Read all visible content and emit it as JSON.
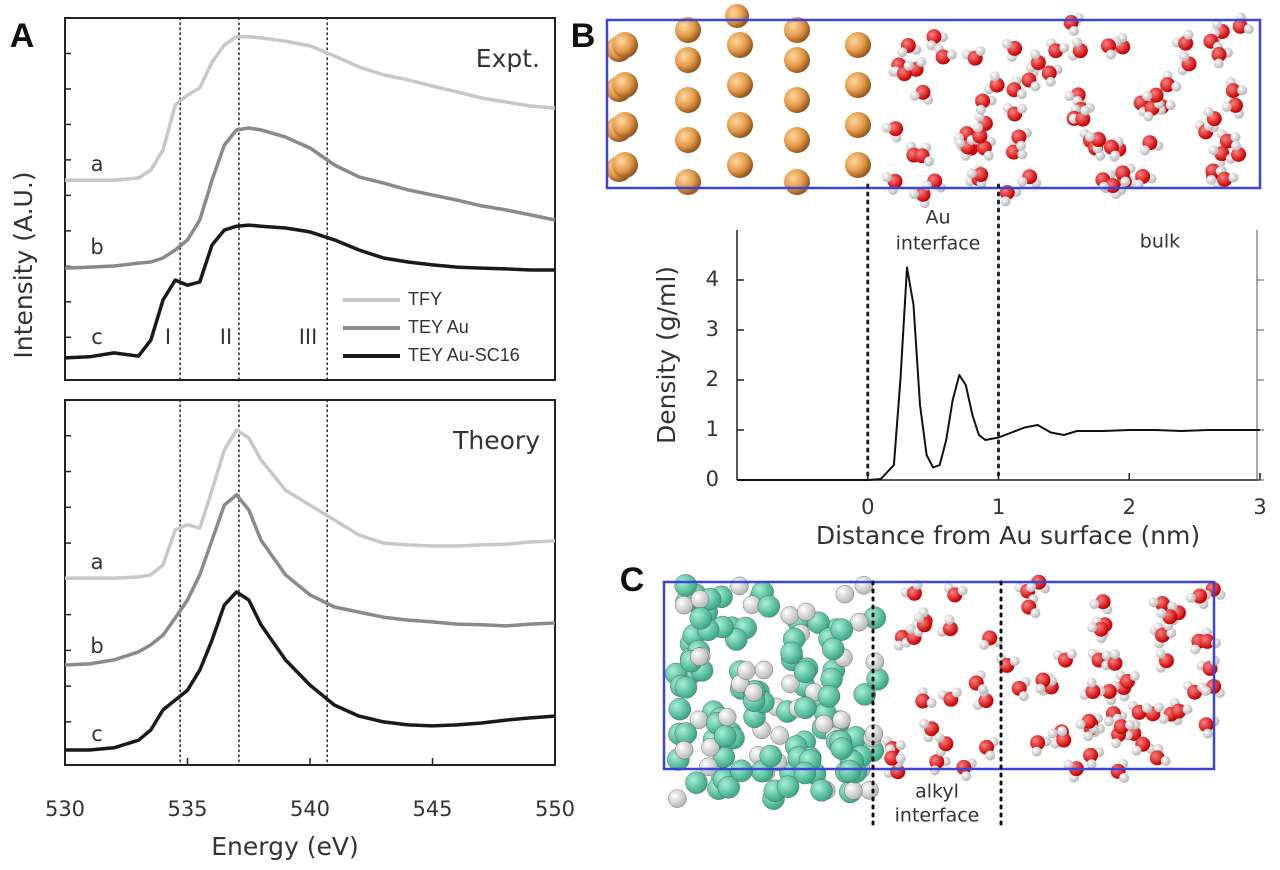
{
  "chart_data": [
    {
      "type": "line",
      "panel": "A",
      "title": "Expt.",
      "ylabel": "Intensity (A.U.)",
      "x": [
        530,
        531,
        532,
        533,
        533.5,
        534,
        534.5,
        535,
        535.5,
        536,
        536.5,
        537,
        537.5,
        538,
        539,
        540,
        541,
        542,
        543,
        544,
        545,
        546,
        547,
        548,
        549,
        550
      ],
      "series": [
        {
          "name": "TFY",
          "color": "#c8c8c8",
          "values": [
            5.52,
            5.52,
            5.52,
            5.58,
            5.8,
            6.35,
            7.6,
            7.87,
            8.07,
            8.78,
            9.25,
            9.48,
            9.48,
            9.45,
            9.36,
            9.23,
            8.95,
            8.65,
            8.43,
            8.29,
            8.12,
            7.96,
            7.79,
            7.68,
            7.57,
            7.51
          ]
        },
        {
          "name": "TEY Au",
          "color": "#8a8a8a",
          "values": [
            3.09,
            3.12,
            3.15,
            3.23,
            3.26,
            3.37,
            3.59,
            3.87,
            4.42,
            5.52,
            6.49,
            6.91,
            6.96,
            6.91,
            6.71,
            6.41,
            5.94,
            5.61,
            5.44,
            5.25,
            5.11,
            4.97,
            4.81,
            4.7,
            4.56,
            4.42
          ]
        },
        {
          "name": "TEY Au-SC16",
          "color": "#1a1a1a",
          "values": [
            0.61,
            0.64,
            0.75,
            0.66,
            1.1,
            2.21,
            2.76,
            2.62,
            2.71,
            3.73,
            4.14,
            4.25,
            4.28,
            4.25,
            4.2,
            4.09,
            3.87,
            3.59,
            3.37,
            3.26,
            3.18,
            3.12,
            3.09,
            3.07,
            3.04,
            3.04
          ]
        }
      ],
      "curve_labels": [
        "a",
        "b",
        "c"
      ],
      "peak_labels": [
        "I",
        "II",
        "III"
      ],
      "reference_lines": [
        534.7,
        537.1,
        540.7
      ],
      "xlim": [
        530,
        550
      ],
      "ylim": [
        0,
        10
      ],
      "legend": "lower right"
    },
    {
      "type": "line",
      "title": "Theory",
      "xlabel": "Energy (eV)",
      "x": [
        530,
        531,
        532,
        533,
        533.5,
        534,
        534.5,
        535,
        535.5,
        536,
        536.5,
        537,
        537.5,
        538,
        539,
        540,
        541,
        542,
        543,
        544,
        545,
        546,
        547,
        548,
        549,
        550
      ],
      "series": [
        {
          "name": "TFY",
          "color": "#c8c8c8",
          "values": [
            5.12,
            5.12,
            5.12,
            5.15,
            5.21,
            5.48,
            6.44,
            6.58,
            6.49,
            7.53,
            8.63,
            9.18,
            8.96,
            8.36,
            7.53,
            7.12,
            6.71,
            6.3,
            6.08,
            6.03,
            6.0,
            6.0,
            6.03,
            6.05,
            6.11,
            6.14
          ]
        },
        {
          "name": "TEY Au",
          "color": "#8a8a8a",
          "values": [
            2.74,
            2.77,
            2.88,
            3.1,
            3.29,
            3.56,
            4.03,
            4.52,
            5.21,
            6.16,
            7.12,
            7.4,
            6.99,
            6.16,
            5.21,
            4.66,
            4.33,
            4.19,
            4.05,
            3.97,
            3.92,
            3.86,
            3.84,
            3.81,
            3.86,
            3.89
          ]
        },
        {
          "name": "TEY Au-SC16",
          "color": "#1a1a1a",
          "values": [
            0.41,
            0.41,
            0.47,
            0.68,
            0.96,
            1.51,
            1.78,
            2.05,
            2.6,
            3.42,
            4.38,
            4.74,
            4.52,
            3.84,
            2.88,
            2.19,
            1.64,
            1.34,
            1.18,
            1.1,
            1.07,
            1.1,
            1.15,
            1.23,
            1.29,
            1.34
          ]
        }
      ],
      "curve_labels": [
        "a",
        "b",
        "c"
      ],
      "reference_lines": [
        534.7,
        537.1,
        540.7
      ],
      "xlim": [
        530,
        550
      ],
      "ylim": [
        0,
        10
      ],
      "xticks": [
        530,
        535,
        540,
        545,
        550
      ]
    },
    {
      "type": "line",
      "panel": "B",
      "xlabel": "Distance from Au surface (nm)",
      "ylabel": "Density (g/ml)",
      "x": [
        -1,
        0,
        0.1,
        0.2,
        0.25,
        0.3,
        0.35,
        0.4,
        0.45,
        0.5,
        0.55,
        0.6,
        0.65,
        0.7,
        0.75,
        0.8,
        0.85,
        0.9,
        1.0,
        1.1,
        1.2,
        1.3,
        1.4,
        1.5,
        1.6,
        1.8,
        2.0,
        2.2,
        2.4,
        2.6,
        2.8,
        3.0
      ],
      "series": [
        {
          "name": "Density",
          "color": "#111111",
          "values": [
            0,
            0,
            0.02,
            0.3,
            2.0,
            4.25,
            3.5,
            1.5,
            0.5,
            0.25,
            0.3,
            0.8,
            1.6,
            2.1,
            1.9,
            1.3,
            0.9,
            0.8,
            0.85,
            0.95,
            1.05,
            1.1,
            0.95,
            0.9,
            0.98,
            0.98,
            1.0,
            1.0,
            0.98,
            1.0,
            1.0,
            1.0
          ]
        }
      ],
      "interface_label": [
        "Au",
        "interface"
      ],
      "bulk_label": "bulk",
      "reference_lines": [
        0,
        1
      ],
      "xlim": [
        -1,
        3
      ],
      "ylim": [
        0,
        5
      ],
      "xticks": [
        0,
        1,
        2,
        3
      ],
      "yticks": [
        0,
        1,
        2,
        3,
        4
      ]
    },
    {
      "type": "snapshot",
      "panel": "C",
      "interface_label": [
        "alkyl",
        "interface"
      ]
    }
  ]
}
